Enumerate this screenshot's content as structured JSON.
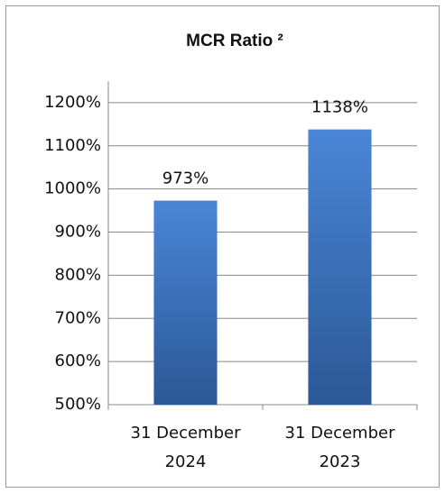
{
  "chart_data": {
    "type": "bar",
    "title": "MCR Ratio ²",
    "categories": [
      "31 December 2024",
      "31 December 2023"
    ],
    "values": [
      973,
      1138
    ],
    "value_labels": [
      "973%",
      "1138%"
    ],
    "color": "#4a86d6",
    "ylim": [
      500,
      1250
    ],
    "yticks": [
      {
        "value": 500,
        "label": "500%"
      },
      {
        "value": 600,
        "label": "600%"
      },
      {
        "value": 700,
        "label": "700%"
      },
      {
        "value": 800,
        "label": "800%"
      },
      {
        "value": 900,
        "label": "900%"
      },
      {
        "value": 1000,
        "label": "1000%"
      },
      {
        "value": 1100,
        "label": "1100%"
      },
      {
        "value": 1200,
        "label": "1200%"
      }
    ],
    "grid": true
  }
}
